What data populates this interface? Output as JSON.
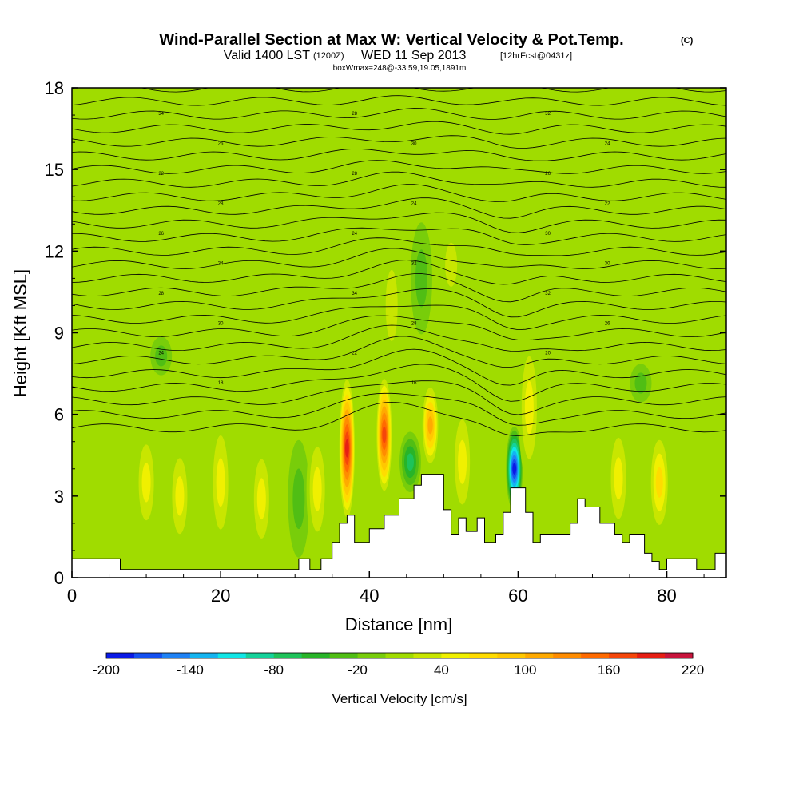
{
  "title": {
    "main": "Wind-Parallel Section at Max W: Vertical Velocity & Pot.Temp.",
    "copyright": "(C)",
    "valid_prefix": "Valid 1400 LST",
    "valid_utc": "(1200Z)",
    "valid_date": "WED 11 Sep 2013",
    "forecast": "[12hrFcst@0431z]",
    "box_info": "boxWmax=248@-33.59,19.05,1891m"
  },
  "chart_data": {
    "type": "heatmap",
    "xlabel": "Distance [nm]",
    "ylabel": "Height [Kft MSL]",
    "xlim": [
      0,
      88
    ],
    "ylim": [
      0,
      18
    ],
    "xticks": [
      "0",
      "20",
      "40",
      "60",
      "80"
    ],
    "xtick_values": [
      0,
      20,
      40,
      60,
      80
    ],
    "yticks": [
      "0",
      "3",
      "6",
      "9",
      "12",
      "15",
      "18"
    ],
    "ytick_values": [
      0,
      3,
      6,
      9,
      12,
      15,
      18
    ],
    "colorbar": {
      "title": "Vertical Velocity [cm/s]",
      "min": -200,
      "max": 220,
      "step": 20,
      "tick_labels": [
        "-200",
        "-140",
        "-80",
        "-20",
        "40",
        "100",
        "160",
        "220"
      ],
      "tick_values": [
        -200,
        -140,
        -80,
        -20,
        40,
        100,
        160,
        220
      ],
      "colors": [
        "#0a1ae6",
        "#1450f0",
        "#1e82f5",
        "#14b4f0",
        "#10e6e6",
        "#14d29a",
        "#1ec35a",
        "#28b428",
        "#50be14",
        "#78cd0a",
        "#a0dc00",
        "#c8e600",
        "#f0f000",
        "#ffdc00",
        "#ffc800",
        "#ffaa00",
        "#ff8c00",
        "#ff6a00",
        "#f5460a",
        "#e61e14",
        "#c8143c"
      ]
    },
    "background_value": 0,
    "vertical_velocity_cells": [
      {
        "x": 37,
        "z": [
          2,
          7.5
        ],
        "w": 190
      },
      {
        "x": 42,
        "z": [
          3,
          7.5
        ],
        "w": 180
      },
      {
        "x": 48.2,
        "z": [
          4,
          7.2
        ],
        "w": 110
      },
      {
        "x": 45.5,
        "z": [
          3.2,
          5.3
        ],
        "w": -80
      },
      {
        "x": 59.5,
        "z": [
          2.5,
          5.5
        ],
        "w": -200
      },
      {
        "x": 61.5,
        "z": [
          3.5,
          9
        ],
        "w": 60
      },
      {
        "x": 14.5,
        "z": [
          1,
          5
        ],
        "w": 60
      },
      {
        "x": 20,
        "z": [
          1,
          6
        ],
        "w": 60
      },
      {
        "x": 25.5,
        "z": [
          0.8,
          5
        ],
        "w": 60
      },
      {
        "x": 10,
        "z": [
          1.5,
          5.5
        ],
        "w": 50
      },
      {
        "x": 73.5,
        "z": [
          1.5,
          5.8
        ],
        "w": 60
      },
      {
        "x": 79,
        "z": [
          1.5,
          5.5
        ],
        "w": 70
      },
      {
        "x": 52.5,
        "z": [
          2,
          6.5
        ],
        "w": 60
      },
      {
        "x": 30.5,
        "z": [
          0.8,
          5
        ],
        "w": -30
      },
      {
        "x": 33,
        "z": [
          1,
          5.5
        ],
        "w": 60
      },
      {
        "x": 12,
        "z": [
          7.5,
          8.8
        ],
        "w": -30
      },
      {
        "x": 76.5,
        "z": [
          6.5,
          7.8
        ],
        "w": -30
      },
      {
        "x": 43,
        "z": [
          7.5,
          12.5
        ],
        "w": 40
      },
      {
        "x": 47,
        "z": [
          9,
          13
        ],
        "w": -30
      },
      {
        "x": 51,
        "z": [
          10,
          13
        ],
        "w": 40
      }
    ],
    "theta_contour_labels": [
      "34",
      "28",
      "32",
      "26",
      "30",
      "24",
      "22",
      "28",
      "26",
      "28",
      "24",
      "22",
      "26",
      "24",
      "30",
      "34",
      "32",
      "30",
      "28",
      "34",
      "32",
      "30",
      "28",
      "26",
      "24",
      "22",
      "20",
      "18",
      "16"
    ],
    "terrain_profile": {
      "x": [
        0,
        6.5,
        6.5,
        30.5,
        30.5,
        32,
        32,
        33.5,
        33.5,
        35,
        35,
        36,
        36,
        37,
        37,
        38,
        38,
        40,
        40,
        42,
        42,
        44,
        44,
        46,
        46,
        47,
        47,
        50,
        50,
        51,
        51,
        52,
        52,
        53,
        53,
        54.5,
        54.5,
        55.5,
        55.5,
        57,
        57,
        58,
        58,
        59,
        59,
        61,
        61,
        62,
        62,
        63,
        63,
        67,
        67,
        68,
        68,
        69,
        69,
        71,
        71,
        73,
        73,
        74,
        74,
        75,
        75,
        77,
        77,
        78,
        78,
        79,
        79,
        80,
        80,
        84,
        84,
        86.5,
        86.5,
        88
      ],
      "z": [
        0.7,
        0.7,
        0.3,
        0.3,
        0.7,
        0.7,
        0.3,
        0.3,
        0.7,
        0.7,
        1.3,
        1.3,
        2,
        2,
        2.3,
        2.3,
        1.3,
        1.3,
        1.8,
        1.8,
        2.3,
        2.3,
        2.9,
        2.9,
        3.4,
        3.4,
        3.8,
        3.8,
        2.5,
        2.5,
        1.6,
        1.6,
        2.2,
        2.2,
        1.7,
        1.7,
        2.2,
        2.2,
        1.3,
        1.3,
        1.6,
        1.6,
        2.4,
        2.4,
        3.3,
        3.3,
        2.4,
        2.4,
        1.3,
        1.3,
        1.6,
        1.6,
        2,
        2,
        2.9,
        2.9,
        2.6,
        2.6,
        2,
        2,
        1.6,
        1.6,
        1.3,
        1.3,
        1.6,
        1.6,
        0.9,
        0.9,
        0.6,
        0.6,
        0.3,
        0.3,
        0.7,
        0.7,
        0.3,
        0.3,
        0.9,
        0.9
      ]
    }
  }
}
